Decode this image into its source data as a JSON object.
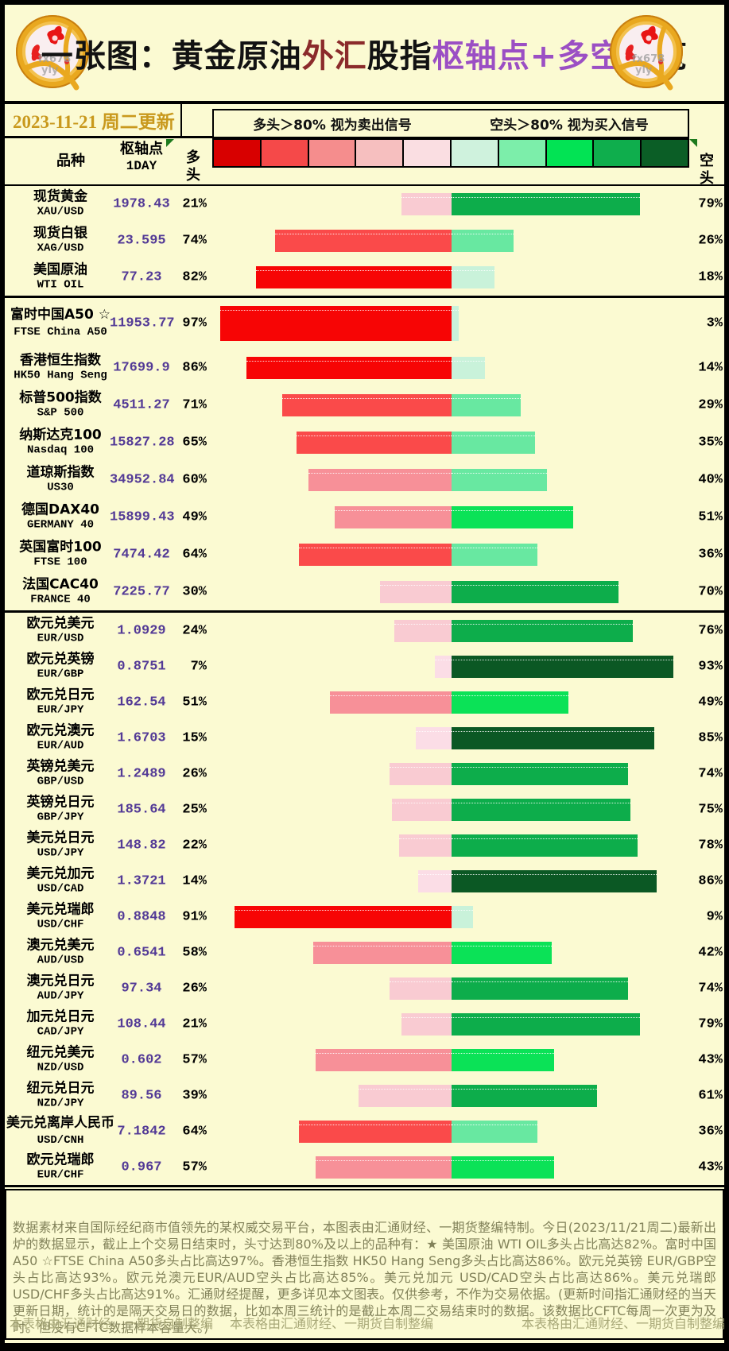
{
  "header": {
    "title_segments": [
      {
        "text": "一张图：黄金原油",
        "color": "#121212"
      },
      {
        "text": "外汇",
        "color": "#8b2b2b"
      },
      {
        "text": "股指",
        "color": "#121212"
      },
      {
        "text": "枢轴点+多空",
        "color": "#9b4fc4"
      },
      {
        "text": "一览",
        "color": "#121212"
      }
    ],
    "date_text": "2023-11-21 周二更新",
    "legend_long": "多头＞80% 视为卖出信号",
    "legend_short": "空头＞80% 视为买入信号",
    "coin_watermark_line1": "fx678",
    "coin_watermark_line2": "yly"
  },
  "columns": {
    "name": "品种",
    "pivot": "枢轴点",
    "pivot_sub": "1DAY",
    "long": "多头",
    "short": "空头"
  },
  "palette": {
    "background": "#fbfad2",
    "pivot_text": "#533a96",
    "date_text": "#c9991d",
    "footer_text": "#82825a",
    "watermark_text": "#a8a878",
    "legend_swatches": [
      "#d80000",
      "#f54949",
      "#f58d8d",
      "#f6bfbf",
      "#fadee2",
      "#cff2dd",
      "#7ceeaa",
      "#02e354",
      "#0fae4d",
      "#0b5e26"
    ],
    "long_buckets_light_to_dark": [
      "#fbdde6",
      "#f9cbd2",
      "#f79098",
      "#fa4a4a",
      "#f70505"
    ],
    "short_buckets_light_to_dark": [
      "#c9f2da",
      "#68e8a1",
      "#0be257",
      "#0dad4b",
      "#0b5824"
    ]
  },
  "chart_data": {
    "type": "bar",
    "subtype": "diverging-horizontal",
    "title": "一张图：黄金原油外汇股指枢轴点+多空一览",
    "note_long": "多头＞80% 视为卖出信号",
    "note_short": "空头＞80% 视为买入信号",
    "xlabel": "多头% (左,红) / 空头% (右,绿)",
    "xlim_each_side": [
      0,
      100
    ],
    "groups": [
      {
        "name": "commodities",
        "rows": [
          {
            "name": "现货黄金",
            "code": "XAU/USD",
            "pivot": "1978.43",
            "long": 21,
            "short": 79
          },
          {
            "name": "现货白银",
            "code": "XAG/USD",
            "pivot": "23.595",
            "long": 74,
            "short": 26
          },
          {
            "name": "美国原油",
            "code": "WTI OIL",
            "pivot": "77.23",
            "long": 82,
            "short": 18
          }
        ]
      },
      {
        "name": "indices",
        "rows": [
          {
            "name": "富时中国A50 ☆",
            "code": "FTSE China A50",
            "pivot": "11953.77",
            "long": 97,
            "short": 3
          },
          {
            "name": "香港恒生指数",
            "code": "HK50 Hang Seng",
            "pivot": "17699.9",
            "long": 86,
            "short": 14
          },
          {
            "name": "标普500指数",
            "code": "S&P 500",
            "pivot": "4511.27",
            "long": 71,
            "short": 29
          },
          {
            "name": "纳斯达克100",
            "code": "Nasdaq 100",
            "pivot": "15827.28",
            "long": 65,
            "short": 35
          },
          {
            "name": "道琼斯指数",
            "code": "US30",
            "pivot": "34952.84",
            "long": 60,
            "short": 40
          },
          {
            "name": "德国DAX40",
            "code": "GERMANY 40",
            "pivot": "15899.43",
            "long": 49,
            "short": 51
          },
          {
            "name": "英国富时100",
            "code": "FTSE 100",
            "pivot": "7474.42",
            "long": 64,
            "short": 36
          },
          {
            "name": "法国CAC40",
            "code": "FRANCE 40",
            "pivot": "7225.77",
            "long": 30,
            "short": 70
          }
        ]
      },
      {
        "name": "forex",
        "rows": [
          {
            "name": "欧元兑美元",
            "code": "EUR/USD",
            "pivot": "1.0929",
            "long": 24,
            "short": 76
          },
          {
            "name": "欧元兑英镑",
            "code": "EUR/GBP",
            "pivot": "0.8751",
            "long": 7,
            "short": 93
          },
          {
            "name": "欧元兑日元",
            "code": "EUR/JPY",
            "pivot": "162.54",
            "long": 51,
            "short": 49
          },
          {
            "name": "欧元兑澳元",
            "code": "EUR/AUD",
            "pivot": "1.6703",
            "long": 15,
            "short": 85
          },
          {
            "name": "英镑兑美元",
            "code": "GBP/USD",
            "pivot": "1.2489",
            "long": 26,
            "short": 74
          },
          {
            "name": "英镑兑日元",
            "code": "GBP/JPY",
            "pivot": "185.64",
            "long": 25,
            "short": 75
          },
          {
            "name": "美元兑日元",
            "code": "USD/JPY",
            "pivot": "148.82",
            "long": 22,
            "short": 78
          },
          {
            "name": "美元兑加元",
            "code": "USD/CAD",
            "pivot": "1.3721",
            "long": 14,
            "short": 86
          },
          {
            "name": "美元兑瑞郎",
            "code": "USD/CHF",
            "pivot": "0.8848",
            "long": 91,
            "short": 9
          },
          {
            "name": "澳元兑美元",
            "code": "AUD/USD",
            "pivot": "0.6541",
            "long": 58,
            "short": 42
          },
          {
            "name": "澳元兑日元",
            "code": "AUD/JPY",
            "pivot": "97.34",
            "long": 26,
            "short": 74
          },
          {
            "name": "加元兑日元",
            "code": "CAD/JPY",
            "pivot": "108.44",
            "long": 21,
            "short": 79
          },
          {
            "name": "纽元兑美元",
            "code": "NZD/USD",
            "pivot": "0.602",
            "long": 57,
            "short": 43
          },
          {
            "name": "纽元兑日元",
            "code": "NZD/JPY",
            "pivot": "89.56",
            "long": 39,
            "short": 61
          },
          {
            "name": "美元兑离岸人民币",
            "code": "USD/CNH",
            "pivot": "7.1842",
            "long": 64,
            "short": 36
          },
          {
            "name": "欧元兑瑞郎",
            "code": "EUR/CHF",
            "pivot": "0.967",
            "long": 57,
            "short": 43
          }
        ]
      }
    ]
  },
  "footer": {
    "paragraph": "数据素材来自国际经纪商市值领先的某权威交易平台，本图表由汇通财经、一期货整编特制。今日(2023/11/21周二)最新出炉的数据显示，截止上个交易日结束时，头寸达到80%及以上的品种有：★ 美国原油 WTI OIL多头占比高达82%。富时中国A50 ☆FTSE China A50多头占比高达97%。香港恒生指数 HK50 Hang Seng多头占比高达86%。欧元兑英镑 EUR/GBP空头占比高达93%。欧元兑澳元EUR/AUD空头占比高达85%。美元兑加元 USD/CAD空头占比高达86%。美元兑瑞郎 USD/CHF多头占比高达91%。汇通财经提醒，更多详见本文图表。仅供参考，不作为交易依据。(更新时间指汇通财经的当天更新日期，统计的是隔天交易日的数据，比如本周三统计的是截止本周二交易结束时的数据。该数据比CFTC每周一次更为及时。但没有CFTC数据样本容量大。)",
    "watermarks": [
      "本表格由汇通财经、一期货自制整编",
      "本表格由汇通财经、一期货自制整编",
      "本表格由汇通财经、一期货自制整编"
    ]
  }
}
